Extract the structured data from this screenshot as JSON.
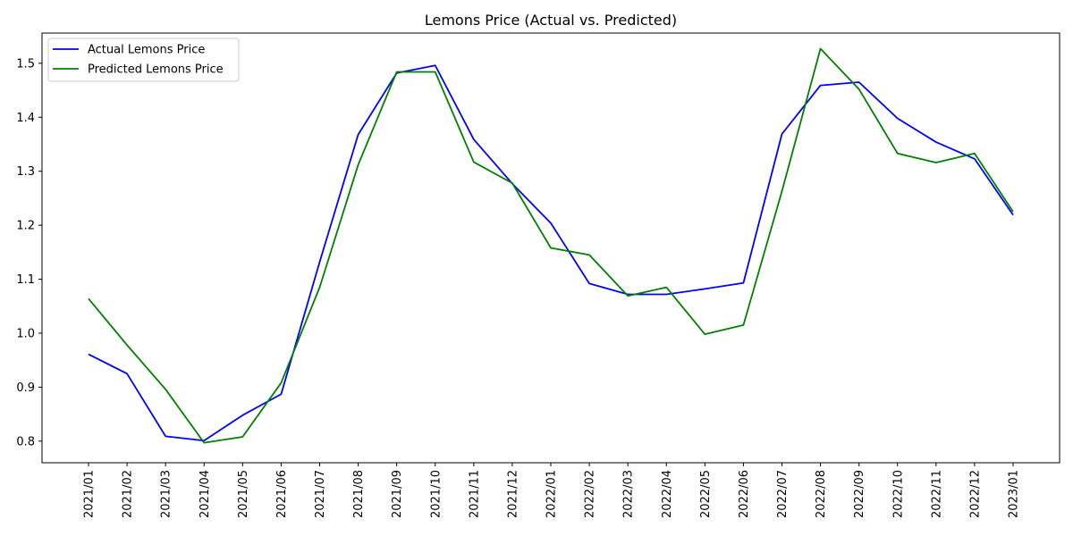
{
  "chart_data": {
    "type": "line",
    "title": "Lemons Price (Actual vs. Predicted)",
    "xlabel": "",
    "ylabel": "",
    "categories": [
      "2021/01",
      "2021/02",
      "2021/03",
      "2021/04",
      "2021/05",
      "2021/06",
      "2021/07",
      "2021/08",
      "2021/09",
      "2021/10",
      "2021/11",
      "2021/12",
      "2022/01",
      "2022/02",
      "2022/03",
      "2022/04",
      "2022/05",
      "2022/06",
      "2022/07",
      "2022/08",
      "2022/09",
      "2022/10",
      "2022/11",
      "2022/12",
      "2023/01"
    ],
    "ylim": [
      0.76,
      1.556
    ],
    "yticks": [
      0.8,
      0.9,
      1.0,
      1.1,
      1.2,
      1.3,
      1.4,
      1.5
    ],
    "ytick_labels": [
      "0.8",
      "0.9",
      "1.0",
      "1.1",
      "1.2",
      "1.3",
      "1.4",
      "1.5"
    ],
    "grid": false,
    "legend_position": "upper-left",
    "series": [
      {
        "name": "Actual Lemons Price",
        "color": "#0000ff",
        "values": [
          0.961,
          0.925,
          0.809,
          0.801,
          0.848,
          0.887,
          1.132,
          1.368,
          1.482,
          1.496,
          1.359,
          1.277,
          1.204,
          1.092,
          1.072,
          1.072,
          1.082,
          1.093,
          1.369,
          1.459,
          1.465,
          1.398,
          1.354,
          1.323,
          1.219
        ]
      },
      {
        "name": "Predicted Lemons Price",
        "color": "#008000",
        "values": [
          1.064,
          0.978,
          0.896,
          0.797,
          0.808,
          0.908,
          1.085,
          1.312,
          1.484,
          1.484,
          1.317,
          1.278,
          1.158,
          1.145,
          1.069,
          1.085,
          0.998,
          1.015,
          1.263,
          1.527,
          1.452,
          1.333,
          1.316,
          1.333,
          1.225
        ]
      }
    ]
  }
}
